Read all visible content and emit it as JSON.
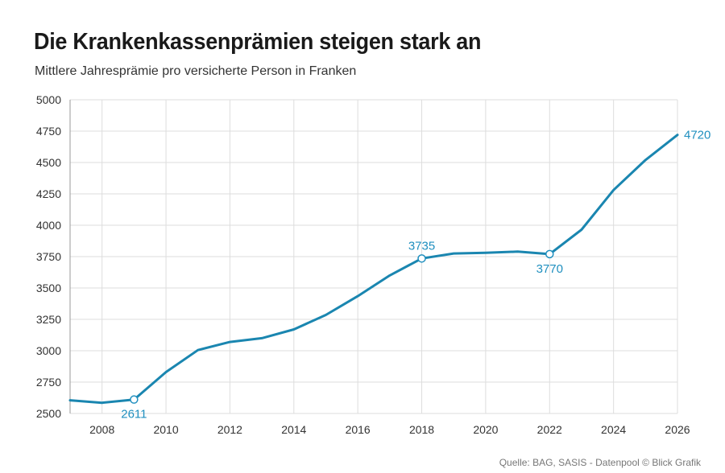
{
  "header": {
    "title": "Die Krankenkassenprämien steigen stark an",
    "subtitle": "Mittlere Jahresprämie pro versicherte Person in Franken"
  },
  "footer": {
    "source": "Quelle: BAG, SASIS - Datenpool © Blick Grafik"
  },
  "colors": {
    "line": "#1a86b0",
    "label": "#1f8fbf",
    "grid": "#dddddd"
  },
  "chart_data": {
    "type": "line",
    "title": "Die Krankenkassenprämien steigen stark an",
    "subtitle": "Mittlere Jahresprämie pro versicherte Person in Franken",
    "xlabel": "",
    "ylabel": "",
    "xlim": [
      2007,
      2026
    ],
    "ylim": [
      2500,
      5000
    ],
    "xticks": [
      2008,
      2010,
      2012,
      2014,
      2016,
      2018,
      2020,
      2022,
      2024,
      2026
    ],
    "yticks": [
      2500,
      2750,
      3000,
      3250,
      3500,
      3750,
      4000,
      4250,
      4500,
      4750,
      5000
    ],
    "grid": true,
    "series": [
      {
        "name": "Mittlere Jahresprämie",
        "x": [
          2007,
          2008,
          2009,
          2010,
          2011,
          2012,
          2013,
          2014,
          2015,
          2016,
          2017,
          2018,
          2019,
          2020,
          2021,
          2022,
          2023,
          2024,
          2025,
          2026
        ],
        "y": [
          2605,
          2585,
          2611,
          2830,
          3005,
          3070,
          3100,
          3170,
          3285,
          3435,
          3600,
          3735,
          3775,
          3780,
          3790,
          3770,
          3965,
          4280,
          4520,
          4720
        ]
      }
    ],
    "annotations": [
      {
        "x": 2009,
        "y": 2611,
        "text": "2611",
        "position": "below",
        "marker": true
      },
      {
        "x": 2018,
        "y": 3735,
        "text": "3735",
        "position": "above",
        "marker": true
      },
      {
        "x": 2022,
        "y": 3770,
        "text": "3770",
        "position": "below",
        "marker": true
      },
      {
        "x": 2026,
        "y": 4720,
        "text": "4720",
        "position": "right",
        "marker": false
      }
    ]
  }
}
